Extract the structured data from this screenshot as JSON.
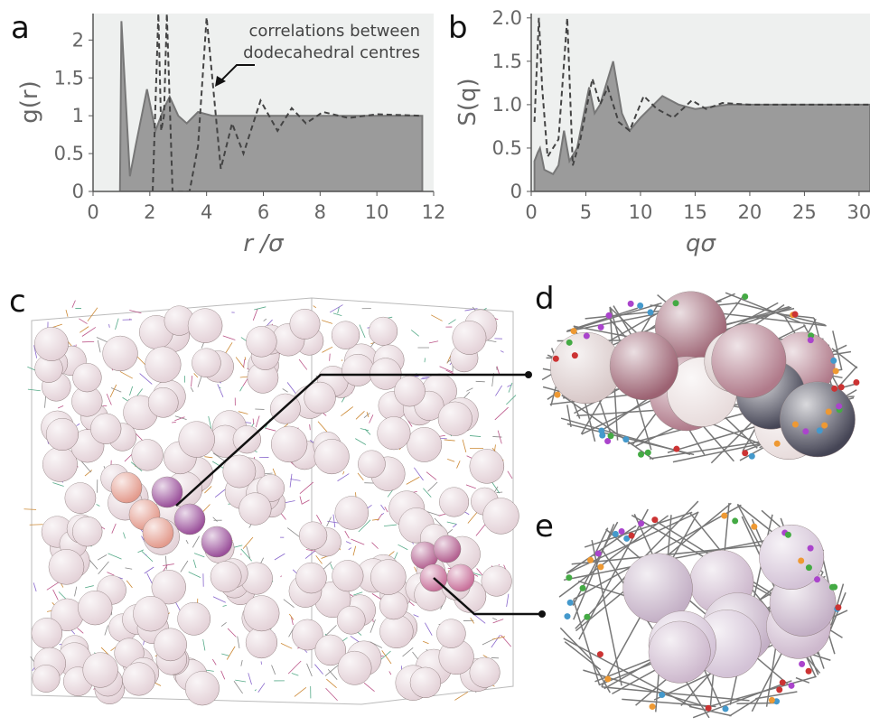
{
  "chart_data": [
    {
      "type": "line",
      "panel_label": "a",
      "xlabel": "r /σ",
      "ylabel": "g(r)",
      "xlim": [
        0,
        12
      ],
      "ylim": [
        0,
        2.35
      ],
      "xticks": [
        0,
        2,
        4,
        6,
        8,
        10,
        12
      ],
      "yticks": [
        0,
        0.5,
        1,
        1.5,
        2
      ],
      "background": "#eef0ef",
      "annotation": [
        "correlations between",
        "dodecahedral centres"
      ],
      "series": [
        {
          "color": "#9b9b9b",
          "fill": true,
          "line_style": "solid",
          "x": [
            0.95,
            1.0,
            1.3,
            1.5,
            1.9,
            2.2,
            2.5,
            2.7,
            3.0,
            3.3,
            3.7,
            4.2,
            5,
            6,
            8,
            11.6
          ],
          "values": [
            0,
            2.25,
            0.2,
            0.6,
            1.35,
            0.8,
            1.1,
            1.25,
            1.0,
            0.9,
            1.05,
            1.0,
            1.0,
            1.0,
            1.0,
            1.0
          ]
        },
        {
          "color": "#444444",
          "fill": false,
          "line_style": "dashed",
          "x": [
            2.1,
            2.3,
            2.4,
            2.5,
            2.6,
            2.8,
            3.4,
            3.7,
            4.0,
            4.5,
            4.9,
            5.3,
            5.9,
            6.5,
            7.0,
            7.5,
            8.1,
            9,
            10,
            11.6
          ],
          "values": [
            0,
            2.35,
            0.8,
            1.0,
            2.35,
            0,
            0,
            0.6,
            2.3,
            0.3,
            0.9,
            0.5,
            1.2,
            0.8,
            1.1,
            0.9,
            1.05,
            0.97,
            1.02,
            1.0
          ]
        }
      ]
    },
    {
      "type": "line",
      "panel_label": "b",
      "xlabel": "qσ",
      "ylabel": "S(q)",
      "xlim": [
        0,
        31
      ],
      "ylim": [
        0,
        2.05
      ],
      "xticks": [
        0,
        5,
        10,
        15,
        20,
        25,
        30
      ],
      "yticks": [
        0,
        0.5,
        {
          "value": 1,
          "label": "1.0"
        },
        1.5,
        {
          "value": 2,
          "label": "2.0"
        }
      ],
      "background": "#eef0ef",
      "series": [
        {
          "color": "#9b9b9b",
          "fill": true,
          "line_style": "solid",
          "x": [
            0.3,
            0.6,
            0.8,
            1.2,
            2,
            2.5,
            3,
            3.5,
            4.2,
            5.3,
            5.8,
            6.3,
            7.5,
            8.3,
            9,
            10,
            12,
            13.5,
            15,
            18,
            31
          ],
          "values": [
            0.35,
            0.45,
            0.5,
            0.25,
            0.2,
            0.3,
            0.7,
            0.35,
            0.5,
            1.2,
            0.9,
            1.0,
            1.5,
            0.9,
            0.7,
            0.85,
            1.1,
            1.0,
            0.95,
            1.0,
            1.0
          ]
        },
        {
          "color": "#444444",
          "fill": false,
          "line_style": "dashed",
          "x": [
            0.3,
            0.7,
            1.0,
            1.5,
            2.5,
            3.3,
            3.8,
            4.5,
            5.6,
            6.3,
            7,
            8,
            9,
            10.3,
            11.5,
            13,
            14.7,
            16,
            17.5,
            20,
            31
          ],
          "values": [
            0.8,
            2.0,
            1.2,
            0.4,
            0.6,
            2.0,
            0.3,
            0.6,
            1.3,
            1.0,
            1.2,
            0.8,
            0.7,
            1.1,
            0.95,
            0.85,
            1.05,
            0.95,
            1.02,
            1.0,
            1.0
          ]
        }
      ]
    }
  ],
  "panel_labels": [
    "c",
    "d",
    "e"
  ]
}
